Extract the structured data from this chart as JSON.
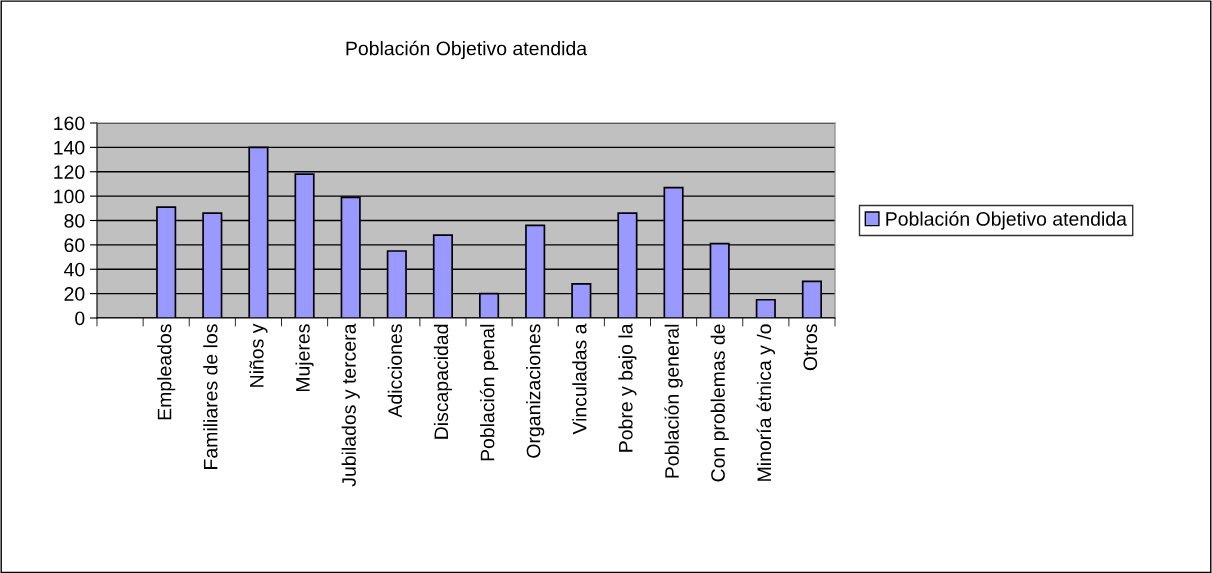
{
  "chart_data": {
    "type": "bar",
    "title": "Población Objetivo atendida",
    "categories": [
      null,
      "Empleados",
      "Familiares de los",
      "Niños y",
      "Mujeres",
      "Jubilados y tercera",
      "Adicciones",
      "Discapacidad",
      "Población penal",
      "Organizaciones",
      "Vinculadas a",
      "Pobre y bajo la",
      "Población general",
      "Con problemas de",
      "Minoría étnica y /o",
      "Otros"
    ],
    "series": [
      {
        "name": "Población Objetivo atendida",
        "color": "#9999ff",
        "values": [
          null,
          91,
          86,
          140,
          118,
          99,
          55,
          68,
          20,
          76,
          28,
          86,
          107,
          61,
          15,
          30
        ]
      }
    ],
    "ylim": [
      0,
      160
    ],
    "yticks": [
      0,
      20,
      40,
      60,
      80,
      100,
      120,
      140,
      160
    ],
    "grid": "y",
    "legend": "right"
  }
}
